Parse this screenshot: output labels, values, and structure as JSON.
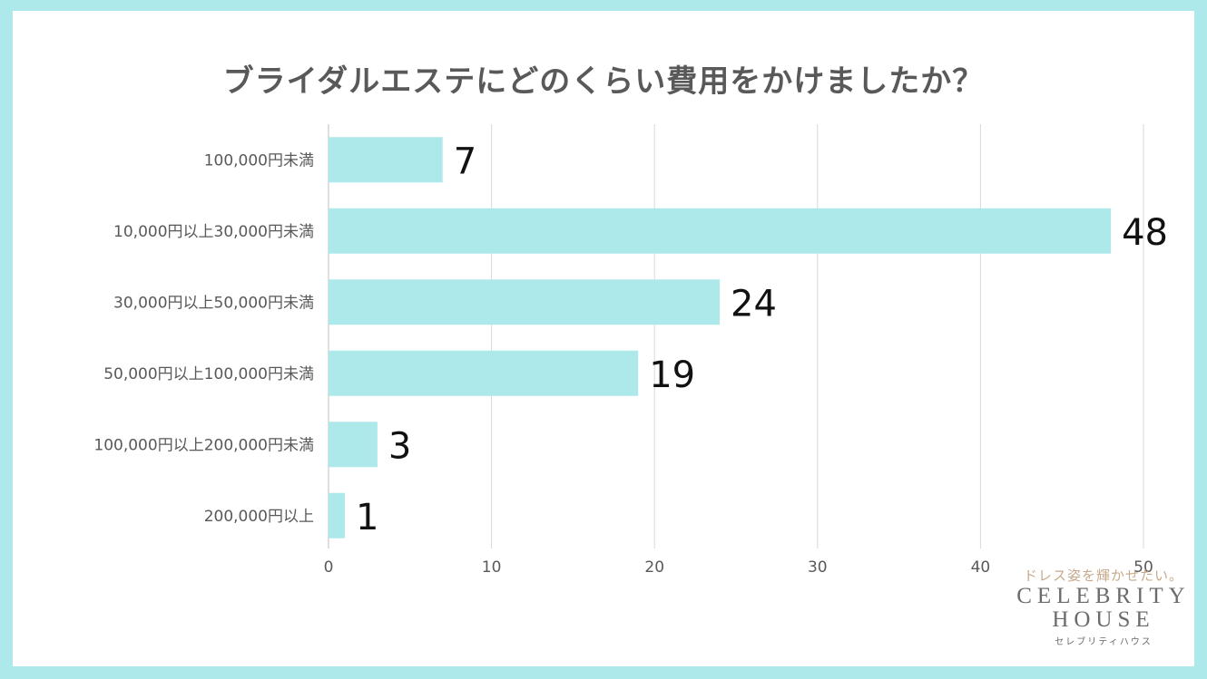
{
  "chart_data": {
    "type": "bar",
    "orientation": "horizontal",
    "title": "ブライダルエステにどのくらい費用をかけましたか？",
    "categories": [
      "100,000円未満",
      "10,000円以上30,000円未満",
      "30,000円以上50,000円未満",
      "50,000円以上100,000円未満",
      "100,000円以上200,000円未満",
      "200,000円以上"
    ],
    "values": [
      7,
      48,
      24,
      19,
      3,
      1
    ],
    "xlim": [
      0,
      50
    ],
    "xticks": [
      0,
      10,
      20,
      30,
      40,
      50
    ],
    "grid": true,
    "bar_color": "#ade8ea",
    "data_labels": true
  },
  "logo": {
    "tagline": "ドレス姿を輝かせたい。",
    "line1": "CELEBRITY",
    "line2": "HOUSE",
    "kana": "セレブリティハウス"
  },
  "colors": {
    "background": "#ade8ea",
    "card": "#ffffff",
    "grid": "#d9d9d9",
    "title": "#595959"
  }
}
